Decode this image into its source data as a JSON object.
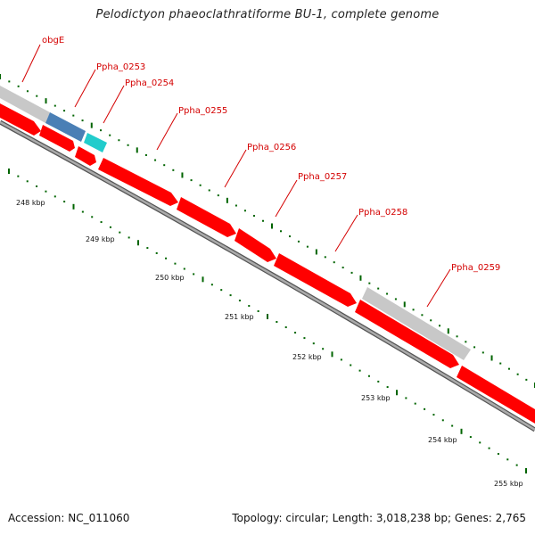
{
  "title": "Pelodictyon phaeoclathratiforme BU-1, complete genome",
  "footer": {
    "accession": "Accession: NC_011060",
    "summary": "Topology: circular; Length: 3,018,238 bp; Genes: 2,765"
  },
  "gene_labels": [
    "obgE",
    "Ppha_0253",
    "Ppha_0254",
    "Ppha_0255",
    "Ppha_0256",
    "Ppha_0257",
    "Ppha_0258",
    "Ppha_0259"
  ],
  "kbp_labels": [
    "248 kbp",
    "249 kbp",
    "250 kbp",
    "251 kbp",
    "252 kbp",
    "253 kbp",
    "254 kbp",
    "255 kbp"
  ],
  "colors": {
    "cds": "#ff0000",
    "gene": "#c8c8c8",
    "highlight_blue": "#4a7fb5",
    "highlight_cyan": "#22cccc",
    "backbone": "#888888",
    "tick": "#006400",
    "label": "#d40000"
  }
}
